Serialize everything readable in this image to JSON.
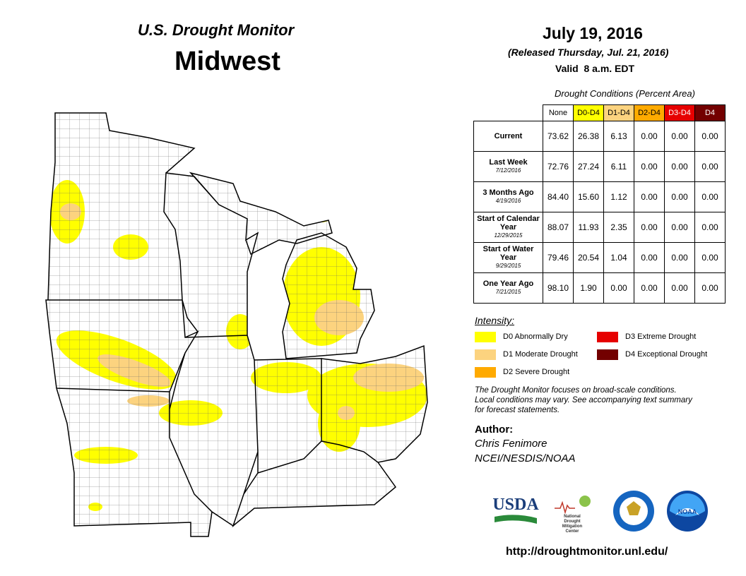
{
  "header": {
    "title": "U.S. Drought Monitor",
    "region": "Midwest",
    "date": "July 19, 2016",
    "released": "(Released Thursday, Jul. 21, 2016)",
    "valid": "Valid  8 a.m. EDT"
  },
  "table": {
    "caption": "Drought Conditions (Percent Area)",
    "columns": [
      {
        "label": "None",
        "color": "#ffffff",
        "text_color": "#000000"
      },
      {
        "label": "D0-D4",
        "color": "#ffff00",
        "text_color": "#000000"
      },
      {
        "label": "D1-D4",
        "color": "#fcd37f",
        "text_color": "#000000"
      },
      {
        "label": "D2-D4",
        "color": "#ffaa00",
        "text_color": "#000000"
      },
      {
        "label": "D3-D4",
        "color": "#e60000",
        "text_color": "#ffffff"
      },
      {
        "label": "D4",
        "color": "#730000",
        "text_color": "#ffffff"
      }
    ],
    "rows": [
      {
        "label": "Current",
        "cells": [
          "73.62",
          "26.38",
          "6.13",
          "0.00",
          "0.00",
          "0.00"
        ]
      },
      {
        "label": "Last Week",
        "date": "7/12/2016",
        "cells": [
          "72.76",
          "27.24",
          "6.11",
          "0.00",
          "0.00",
          "0.00"
        ]
      },
      {
        "label": "3 Months Ago",
        "date": "4/19/2016",
        "cells": [
          "84.40",
          "15.60",
          "1.12",
          "0.00",
          "0.00",
          "0.00"
        ]
      },
      {
        "label": "Start of Calendar Year",
        "date": "12/29/2015",
        "cells": [
          "88.07",
          "11.93",
          "2.35",
          "0.00",
          "0.00",
          "0.00"
        ]
      },
      {
        "label": "Start of Water Year",
        "date": "9/29/2015",
        "cells": [
          "79.46",
          "20.54",
          "1.04",
          "0.00",
          "0.00",
          "0.00"
        ]
      },
      {
        "label": "One Year Ago",
        "date": "7/21/2015",
        "cells": [
          "98.10",
          "1.90",
          "0.00",
          "0.00",
          "0.00",
          "0.00"
        ]
      }
    ]
  },
  "legend": {
    "title": "Intensity:",
    "items": [
      {
        "label": "D0 Abnormally Dry",
        "color": "#ffff00"
      },
      {
        "label": "D1 Moderate Drought",
        "color": "#fcd37f"
      },
      {
        "label": "D2 Severe Drought",
        "color": "#ffaa00"
      },
      {
        "label": "D3 Extreme Drought",
        "color": "#e60000"
      },
      {
        "label": "D4 Exceptional Drought",
        "color": "#730000"
      }
    ]
  },
  "note": [
    "The Drought Monitor focuses on broad-scale conditions.",
    "Local conditions may vary. See accompanying text summary",
    "for forecast statements."
  ],
  "author": {
    "heading": "Author:",
    "name": "Chris Fenimore",
    "affiliation": "NCEI/NESDIS/NOAA"
  },
  "logos": {
    "usda": "USDA",
    "ndmc": [
      "National",
      "Drought",
      "Mitigation",
      "Center"
    ],
    "noaa": "NOAA"
  },
  "url": "http://droughtmonitor.unl.edu/"
}
